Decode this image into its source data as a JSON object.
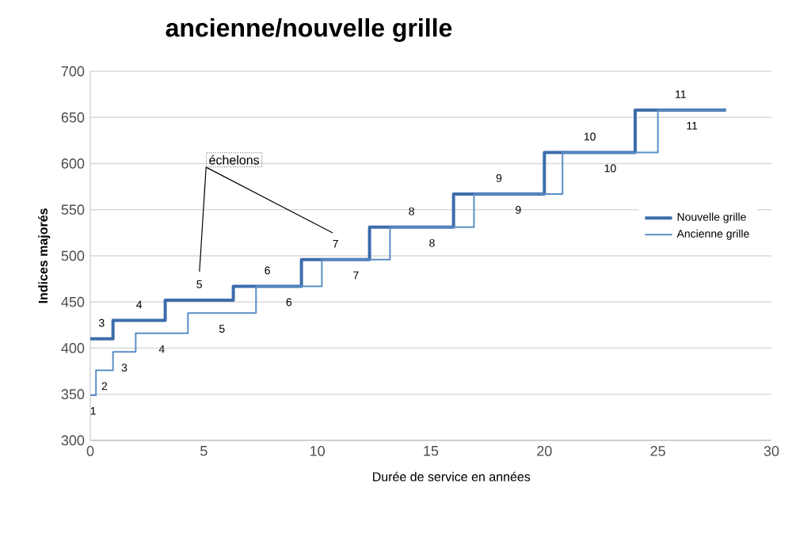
{
  "chart_data": {
    "type": "step",
    "title": "ancienne/nouvelle grille",
    "xlabel": "Durée de service en années",
    "ylabel": "Indices majorés",
    "xlim": [
      0,
      30
    ],
    "xticks": [
      0,
      5,
      10,
      15,
      20,
      25,
      30
    ],
    "ylim": [
      300,
      700
    ],
    "yticks": [
      300,
      350,
      400,
      450,
      500,
      550,
      600,
      650,
      700
    ],
    "grid": "y",
    "legend": "right",
    "series": [
      {
        "name": "Nouvelle grille",
        "color": "#3d6cab",
        "x": [
          0,
          1,
          3.3,
          6.3,
          9.3,
          12.3,
          16,
          20,
          24,
          28
        ],
        "values": [
          410,
          430,
          452,
          467,
          496,
          531,
          567,
          612,
          658,
          658
        ]
      },
      {
        "name": "Ancienne grille",
        "color": "#5b8ec8",
        "x": [
          0,
          0.25,
          1,
          2,
          4.3,
          7.3,
          10.2,
          13.2,
          16.9,
          20.8,
          25,
          28
        ],
        "values": [
          349,
          376,
          396,
          416,
          438,
          467,
          496,
          531,
          567,
          612,
          658,
          658
        ]
      }
    ],
    "annotations": [
      "échelons",
      "3",
      "4",
      "5",
      "6",
      "7",
      "8",
      "9",
      "10",
      "11",
      "1",
      "2",
      "3",
      "4",
      "5",
      "6",
      "7",
      "8",
      "9",
      "10",
      "11"
    ]
  }
}
